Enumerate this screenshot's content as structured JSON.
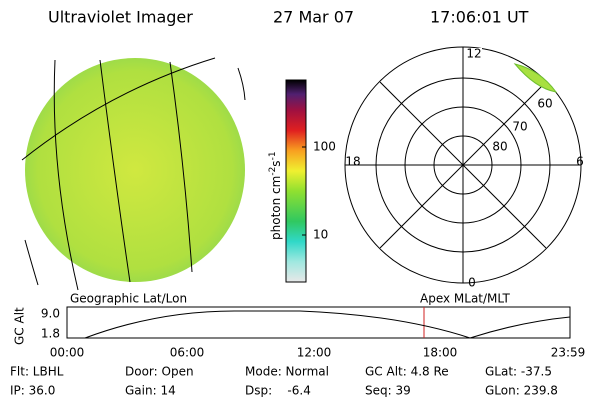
{
  "header": {
    "title": "Ultraviolet Imager",
    "date": "27 Mar 07",
    "time": "17:06:01 UT"
  },
  "colorbar": {
    "label": [
      "photon cm",
      "-2",
      "s",
      "-1"
    ],
    "ticks": [
      "100",
      "10"
    ]
  },
  "polar": {
    "mlt": [
      "12",
      "18",
      "6",
      "0"
    ],
    "mlat": [
      "60",
      "70",
      "80"
    ]
  },
  "altitude_plot": {
    "left_title": "Geographic Lat/Lon",
    "right_title": "Apex MLat/MLT",
    "y_label": "GC Alt",
    "yticks": [
      "9.0",
      "1.8"
    ],
    "xticks": [
      "00:00",
      "06:00",
      "12:00",
      "18:00",
      "23:59"
    ]
  },
  "footer": {
    "rows": [
      [
        "Flt: LBHL",
        "Door: Open",
        "Mode: Normal",
        "GC Alt: 4.8 Re",
        "GLat: -37.5"
      ],
      [
        "IP: 36.0",
        "Gain: 14",
        "Dsp:    -6.4",
        "Seq: 39",
        "GLon: 239.8"
      ]
    ]
  }
}
